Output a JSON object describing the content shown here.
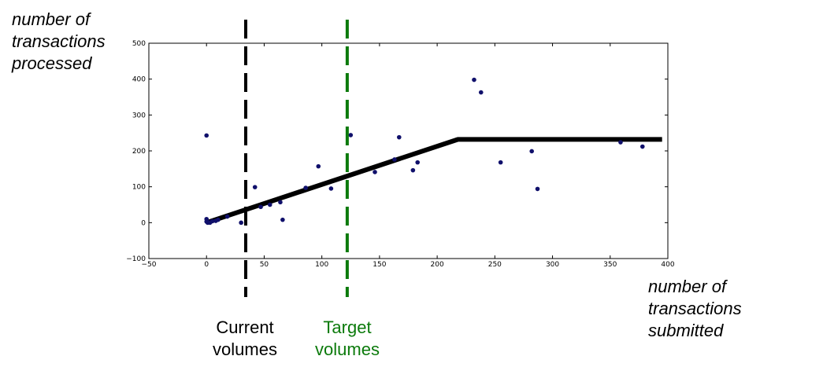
{
  "chart_data": {
    "type": "scatter",
    "title": "",
    "xlim": [
      -50,
      400
    ],
    "ylim": [
      -100,
      500
    ],
    "x_ticks": [
      "−50",
      "0",
      "50",
      "100",
      "150",
      "200",
      "250",
      "300",
      "350",
      "400"
    ],
    "y_ticks": [
      "−100",
      "0",
      "100",
      "200",
      "300",
      "400",
      "500"
    ],
    "x_tick_values": [
      -50,
      0,
      50,
      100,
      150,
      200,
      250,
      300,
      350,
      400
    ],
    "y_tick_values": [
      -100,
      0,
      100,
      200,
      300,
      400,
      500
    ],
    "grid": false,
    "point_color": "#10106b",
    "points": [
      {
        "x": 0,
        "y": 243
      },
      {
        "x": 0,
        "y": 10
      },
      {
        "x": 0,
        "y": 3
      },
      {
        "x": 1,
        "y": 0
      },
      {
        "x": 2,
        "y": 1
      },
      {
        "x": 3,
        "y": 0
      },
      {
        "x": 5,
        "y": 4
      },
      {
        "x": 8,
        "y": 5
      },
      {
        "x": 10,
        "y": 8
      },
      {
        "x": 18,
        "y": 17
      },
      {
        "x": 30,
        "y": 0
      },
      {
        "x": 42,
        "y": 99
      },
      {
        "x": 47,
        "y": 44
      },
      {
        "x": 55,
        "y": 50
      },
      {
        "x": 64,
        "y": 57
      },
      {
        "x": 66,
        "y": 8
      },
      {
        "x": 86,
        "y": 97
      },
      {
        "x": 97,
        "y": 157
      },
      {
        "x": 108,
        "y": 95
      },
      {
        "x": 125,
        "y": 244
      },
      {
        "x": 146,
        "y": 141
      },
      {
        "x": 163,
        "y": 176
      },
      {
        "x": 167,
        "y": 238
      },
      {
        "x": 179,
        "y": 146
      },
      {
        "x": 183,
        "y": 168
      },
      {
        "x": 232,
        "y": 398
      },
      {
        "x": 238,
        "y": 363
      },
      {
        "x": 255,
        "y": 168
      },
      {
        "x": 282,
        "y": 199
      },
      {
        "x": 287,
        "y": 94
      },
      {
        "x": 359,
        "y": 224
      },
      {
        "x": 378,
        "y": 212
      }
    ],
    "fit_line": {
      "color": "#000000",
      "x": [
        0,
        218,
        395
      ],
      "y": [
        0,
        232,
        232
      ]
    },
    "vlines": [
      {
        "x": 34,
        "color": "#000000",
        "label": "Current volumes"
      },
      {
        "x": 122,
        "color": "#0b7a0b",
        "label": "Target volumes"
      }
    ]
  },
  "annotations": {
    "ylabel": [
      "number of",
      "transactions",
      "processed"
    ],
    "xlabel": [
      "number of",
      "transactions",
      "submitted"
    ],
    "current_label": [
      "Current",
      "volumes"
    ],
    "target_label": [
      "Target",
      "volumes"
    ],
    "current_color": "#000000",
    "target_color": "#0b7a0b"
  }
}
